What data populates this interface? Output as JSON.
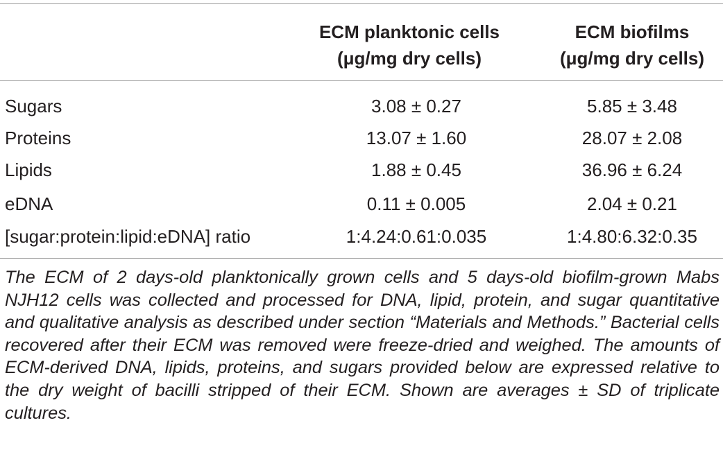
{
  "table": {
    "columns": [
      {
        "line1": "ECM planktonic cells",
        "line2": "(μg/mg dry cells)"
      },
      {
        "line1": "ECM biofilms",
        "line2": "(μg/mg dry cells)"
      }
    ],
    "rows": [
      {
        "label": "Sugars",
        "planktonic": "3.08 ± 0.27",
        "biofilms": "5.85 ± 3.48"
      },
      {
        "label": "Proteins",
        "planktonic": "13.07 ± 1.60",
        "biofilms": "28.07 ± 2.08"
      },
      {
        "label": "Lipids",
        "planktonic": "1.88 ± 0.45",
        "biofilms": "36.96 ± 6.24"
      },
      {
        "label": "eDNA",
        "planktonic": "0.11 ± 0.005",
        "biofilms": "2.04 ± 0.21"
      },
      {
        "label": "[sugar:protein:lipid:eDNA] ratio",
        "planktonic": "1:4.24:0.61:0.035",
        "biofilms": "1:4.80:6.32:0.35"
      }
    ]
  },
  "caption": "The ECM of 2 days-old planktonically grown cells and 5 days-old biofilm-grown Mabs NJH12 cells was collected and processed for DNA, lipid, protein, and sugar quantitative and qualitative analysis as described under section “Materials and Methods.” Bacterial cells recovered after their ECM was removed were freeze-dried and weighed. The amounts of ECM-derived DNA, lipids, proteins, and sugars provided below are expressed relative to the dry weight of bacilli stripped of their ECM. Shown are averages ± SD of triplicate cultures."
}
